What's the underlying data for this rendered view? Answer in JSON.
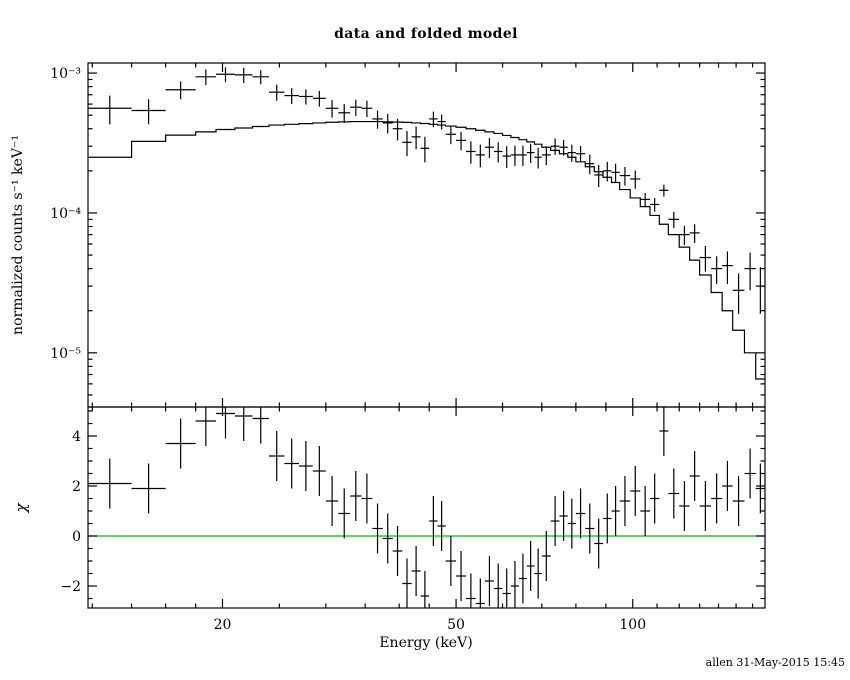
{
  "footer": {
    "stamp": "allen 31-May-2015 15:45"
  },
  "chart_data": {
    "type": "line",
    "subtype": "xspec-folded-spectrum-with-residuals",
    "title": "data and folded model",
    "legend": "none",
    "grid": false,
    "colors": {
      "data": "#000000",
      "model": "#000000",
      "zero_line": "#00C000",
      "background": "#ffffff"
    },
    "x_axis": {
      "label": "Energy (keV)",
      "scale": "log",
      "range": [
        11.8,
        168
      ],
      "major_ticks": [
        {
          "v": 20,
          "label": "20"
        },
        {
          "v": 50,
          "label": "50"
        },
        {
          "v": 100,
          "label": "100"
        }
      ],
      "minor_ticks": [
        12,
        14,
        16,
        18,
        25,
        30,
        35,
        40,
        45,
        60,
        70,
        80,
        90,
        110,
        120,
        130,
        140,
        150,
        160
      ]
    },
    "top_panel": {
      "y_axis": {
        "label": "normalized counts s⁻¹ keV⁻¹",
        "scale": "log",
        "range": [
          4.1e-06,
          0.00118
        ],
        "major_ticks": [
          {
            "v": 0.001,
            "label": "10⁻³"
          },
          {
            "v": 0.0001,
            "label": "10⁻⁴"
          },
          {
            "v": 1e-05,
            "label": "10⁻⁵"
          }
        ]
      },
      "bin_edges": [
        11.8,
        14,
        16,
        18,
        19.5,
        21,
        22.5,
        24,
        25.5,
        27,
        28.5,
        30,
        31.5,
        33,
        34.5,
        36,
        37.5,
        39,
        40.5,
        42,
        43.5,
        45,
        46.5,
        48,
        50,
        52,
        54,
        56,
        58,
        60,
        62,
        64,
        66,
        68,
        70,
        72.5,
        75,
        77.5,
        80,
        83,
        86,
        89,
        92,
        95,
        99,
        103,
        107,
        111,
        115,
        120,
        125,
        130,
        136,
        142,
        148,
        155,
        162,
        168
      ],
      "data": {
        "rate": [
          0.00056,
          0.00054,
          0.00076,
          0.00094,
          0.00098,
          0.00097,
          0.00094,
          0.00073,
          0.00069,
          0.00068,
          0.00066,
          0.00056,
          0.00052,
          0.00057,
          0.00056,
          0.00047,
          0.00044,
          0.0004,
          0.00032,
          0.00035,
          0.00029,
          0.00047,
          0.00045,
          0.000365,
          0.00033,
          0.000275,
          0.00026,
          0.000295,
          0.000275,
          0.000255,
          0.00026,
          0.00026,
          0.00027,
          0.00025,
          0.00026,
          0.0003,
          0.000295,
          0.00027,
          0.000265,
          0.000225,
          0.000187,
          0.0002,
          0.000195,
          0.000185,
          0.000175,
          0.000125,
          0.000115,
          0.000145,
          9e-05,
          7e-05,
          7.2e-05,
          4.8e-05,
          4e-05,
          4.2e-05,
          2.8e-05,
          4e-05,
          3e-05
        ],
        "rate_err": [
          0.00013,
          0.00011,
          0.00011,
          0.00012,
          0.00012,
          0.00012,
          0.00011,
          9.5e-05,
          9e-05,
          8.5e-05,
          8.5e-05,
          8e-05,
          8e-05,
          7.5e-05,
          7.5e-05,
          7e-05,
          7e-05,
          7e-05,
          6.5e-05,
          6.5e-05,
          6e-05,
          6e-05,
          5.5e-05,
          5.5e-05,
          5e-05,
          5e-05,
          4.8e-05,
          4.8e-05,
          4.5e-05,
          4.5e-05,
          4.3e-05,
          4.3e-05,
          4.2e-05,
          4.2e-05,
          4e-05,
          4e-05,
          3.8e-05,
          3.8e-05,
          3.6e-05,
          3.6e-05,
          3.4e-05,
          3.2e-05,
          3e-05,
          2.8e-05,
          2.6e-05,
          1.4e-05,
          1.3e-05,
          1.4e-05,
          1.2e-05,
          1.1e-05,
          1.1e-05,
          1e-05,
          9e-06,
          1.1e-05,
          9e-06,
          1.2e-05,
          1.1e-05
        ]
      },
      "model": [
        0.00025,
        0.000325,
        0.00036,
        0.00038,
        0.000395,
        0.000405,
        0.000415,
        0.000425,
        0.00043,
        0.000435,
        0.00044,
        0.000445,
        0.000448,
        0.00045,
        0.00045,
        0.00045,
        0.000448,
        0.000446,
        0.000444,
        0.00044,
        0.000436,
        0.00043,
        0.000425,
        0.000418,
        0.00041,
        0.0004,
        0.00039,
        0.00038,
        0.00037,
        0.000358,
        0.000346,
        0.000334,
        0.000322,
        0.00031,
        0.000295,
        0.00028,
        0.000265,
        0.00025,
        0.000232,
        0.000214,
        0.000197,
        0.00018,
        0.000165,
        0.000147,
        0.000128,
        0.000111,
        9.6e-05,
        8.3e-05,
        7e-05,
        5.7e-05,
        4.6e-05,
        3.6e-05,
        2.7e-05,
        2e-05,
        1.45e-05,
        1e-05,
        6.5e-06
      ]
    },
    "bottom_panel": {
      "y_axis": {
        "label": "χ",
        "scale": "linear",
        "range": [
          -2.88,
          5.16
        ],
        "major_ticks": [
          {
            "v": -2,
            "label": "−2"
          },
          {
            "v": 0,
            "label": "0"
          },
          {
            "v": 2,
            "label": "2"
          },
          {
            "v": 4,
            "label": "4"
          }
        ],
        "minor_step": 0.5
      },
      "chi": [
        2.1,
        1.9,
        3.7,
        4.6,
        4.9,
        4.8,
        4.7,
        3.2,
        2.9,
        2.8,
        2.6,
        1.4,
        0.9,
        1.6,
        1.5,
        0.3,
        -0.1,
        -0.6,
        -1.9,
        -1.4,
        -2.4,
        0.6,
        0.4,
        -1.0,
        -1.6,
        -2.5,
        -2.7,
        -1.8,
        -2.1,
        -2.3,
        -2.0,
        -1.7,
        -1.2,
        -1.5,
        -0.8,
        0.6,
        0.8,
        0.5,
        0.9,
        0.3,
        -0.3,
        0.7,
        1.0,
        1.4,
        1.8,
        1.0,
        1.5,
        4.2,
        1.7,
        1.2,
        2.4,
        1.2,
        1.5,
        2.0,
        1.4,
        2.5,
        1.9
      ],
      "chi_err": 1,
      "zero_line": 0
    }
  }
}
